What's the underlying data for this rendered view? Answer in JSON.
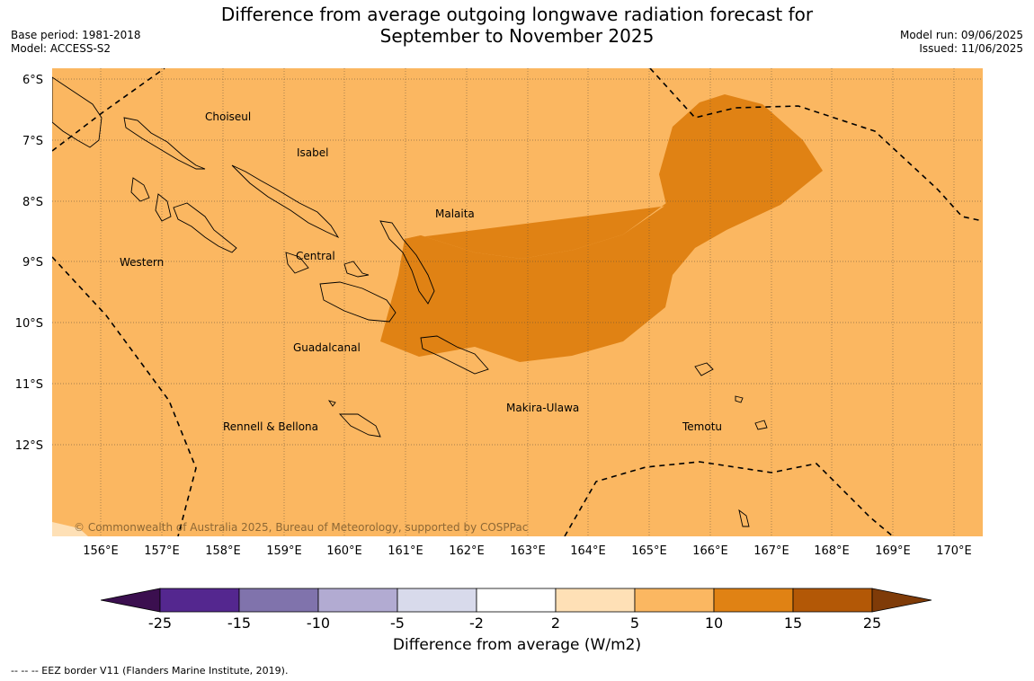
{
  "title": {
    "line1": "Difference from average outgoing longwave radiation forecast for",
    "line2": "September to November 2025"
  },
  "meta_left": {
    "base_period": "Base period: 1981-2018",
    "model": "Model: ACCESS-S2"
  },
  "meta_right": {
    "model_run": "Model run: 09/06/2025",
    "issued": "Issued: 11/06/2025"
  },
  "latitude_labels": [
    "6°S",
    "7°S",
    "8°S",
    "9°S",
    "10°S",
    "11°S",
    "12°S"
  ],
  "longitude_labels": [
    "156°E",
    "157°E",
    "158°E",
    "159°E",
    "160°E",
    "161°E",
    "162°E",
    "163°E",
    "164°E",
    "165°E",
    "166°E",
    "167°E",
    "168°E",
    "169°E",
    "170°E"
  ],
  "regions": [
    "Choiseul",
    "Isabel",
    "Malaita",
    "Western",
    "Central",
    "Guadalcanal",
    "Makira-Ulawa",
    "Rennell & Bellona",
    "Temotu"
  ],
  "copyright": "© Commonwealth of Australia 2025, Bureau of Meteorology, supported by COSPPac",
  "colorbar": {
    "ticks": [
      "-25",
      "-15",
      "-10",
      "-5",
      "-2",
      "2",
      "5",
      "10",
      "15",
      "25"
    ],
    "colors": [
      "#3b0f4f",
      "#54278f",
      "#8073ac",
      "#b2abd2",
      "#d8daeb",
      "#ffffff",
      "#fee0b6",
      "#fbb761",
      "#e08214",
      "#b35806",
      "#7f3b08"
    ],
    "title": "Difference from average (W/m2)"
  },
  "footnote": "--  --  -- EEZ border V11 (Flanders Marine Institute, 2019).",
  "map": {
    "background_color": "#fbb761",
    "anomaly_color": "#e08214",
    "low_color": "#fee0b6",
    "lon_range": [
      155.2,
      170.5
    ],
    "lat_range": [
      -5.8,
      -13.5
    ]
  }
}
